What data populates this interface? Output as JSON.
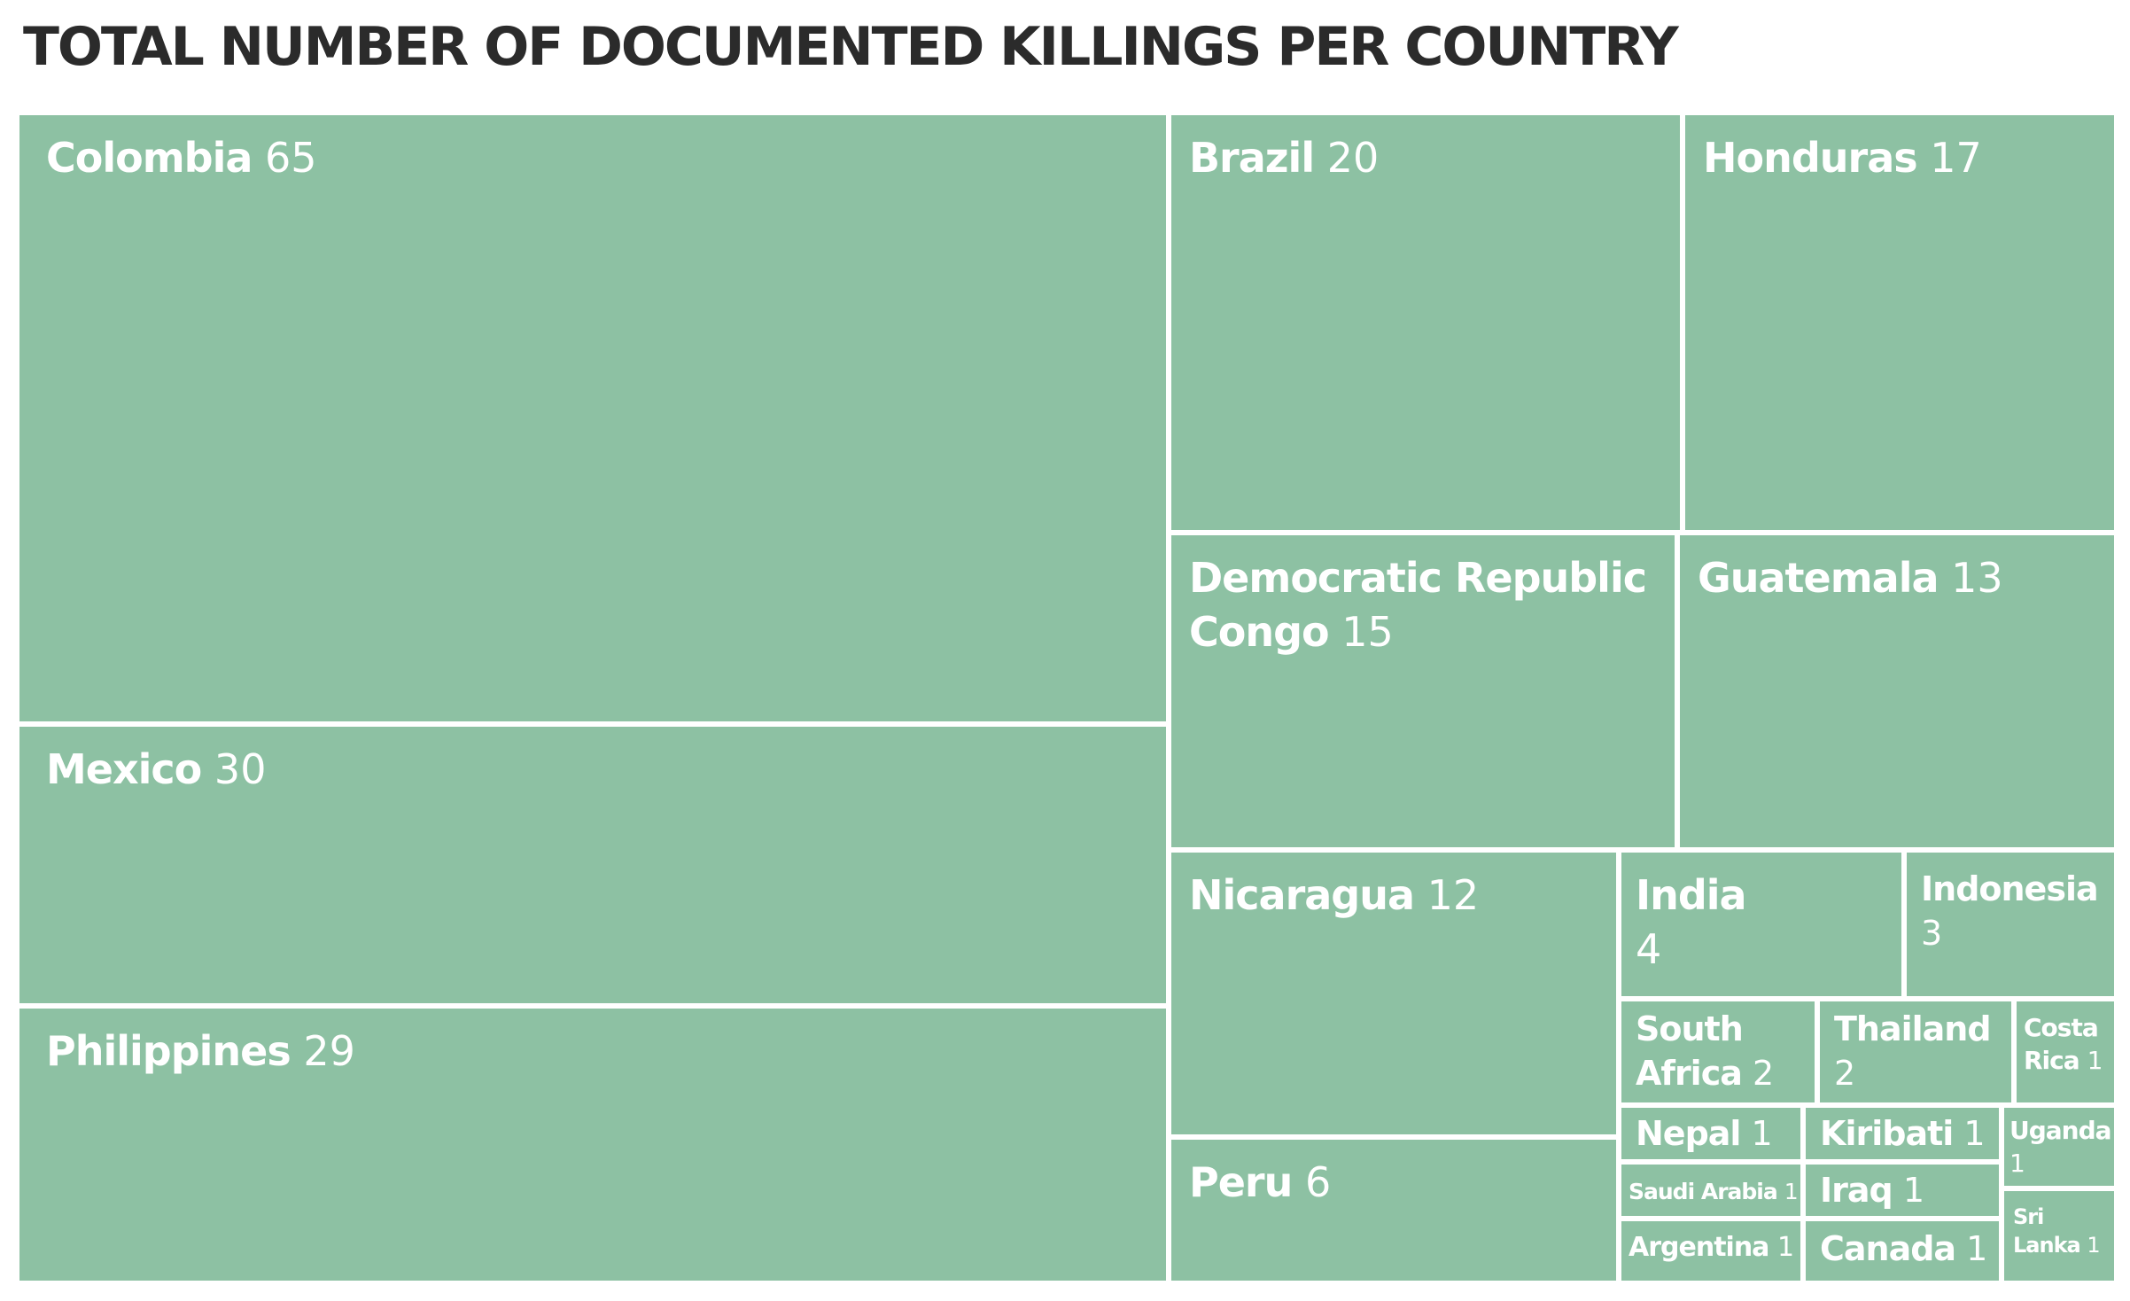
{
  "chart_data": {
    "type": "treemap",
    "title": "TOTAL NUMBER OF DOCUMENTED KILLINGS PER COUNTRY",
    "color": "#8dc1a3",
    "label_color": "#ffffff",
    "items": [
      {
        "name": "Colombia",
        "value": 65
      },
      {
        "name": "Mexico",
        "value": 30
      },
      {
        "name": "Philippines",
        "value": 29
      },
      {
        "name": "Brazil",
        "value": 20
      },
      {
        "name": "Honduras",
        "value": 17
      },
      {
        "name": "Democratic Republic Congo",
        "value": 15
      },
      {
        "name": "Guatemala",
        "value": 13
      },
      {
        "name": "Nicaragua",
        "value": 12
      },
      {
        "name": "Peru",
        "value": 6
      },
      {
        "name": "India",
        "value": 4
      },
      {
        "name": "Indonesia",
        "value": 3
      },
      {
        "name": "South Africa",
        "value": 2
      },
      {
        "name": "Thailand",
        "value": 2
      },
      {
        "name": "Costa Rica",
        "value": 1
      },
      {
        "name": "Nepal",
        "value": 1
      },
      {
        "name": "Kiribati",
        "value": 1
      },
      {
        "name": "Uganda",
        "value": 1
      },
      {
        "name": "Saudi Arabia",
        "value": 1
      },
      {
        "name": "Iraq",
        "value": 1
      },
      {
        "name": "Sri Lanka",
        "value": 1
      },
      {
        "name": "Argentina",
        "value": 1
      },
      {
        "name": "Canada",
        "value": 1
      }
    ]
  }
}
